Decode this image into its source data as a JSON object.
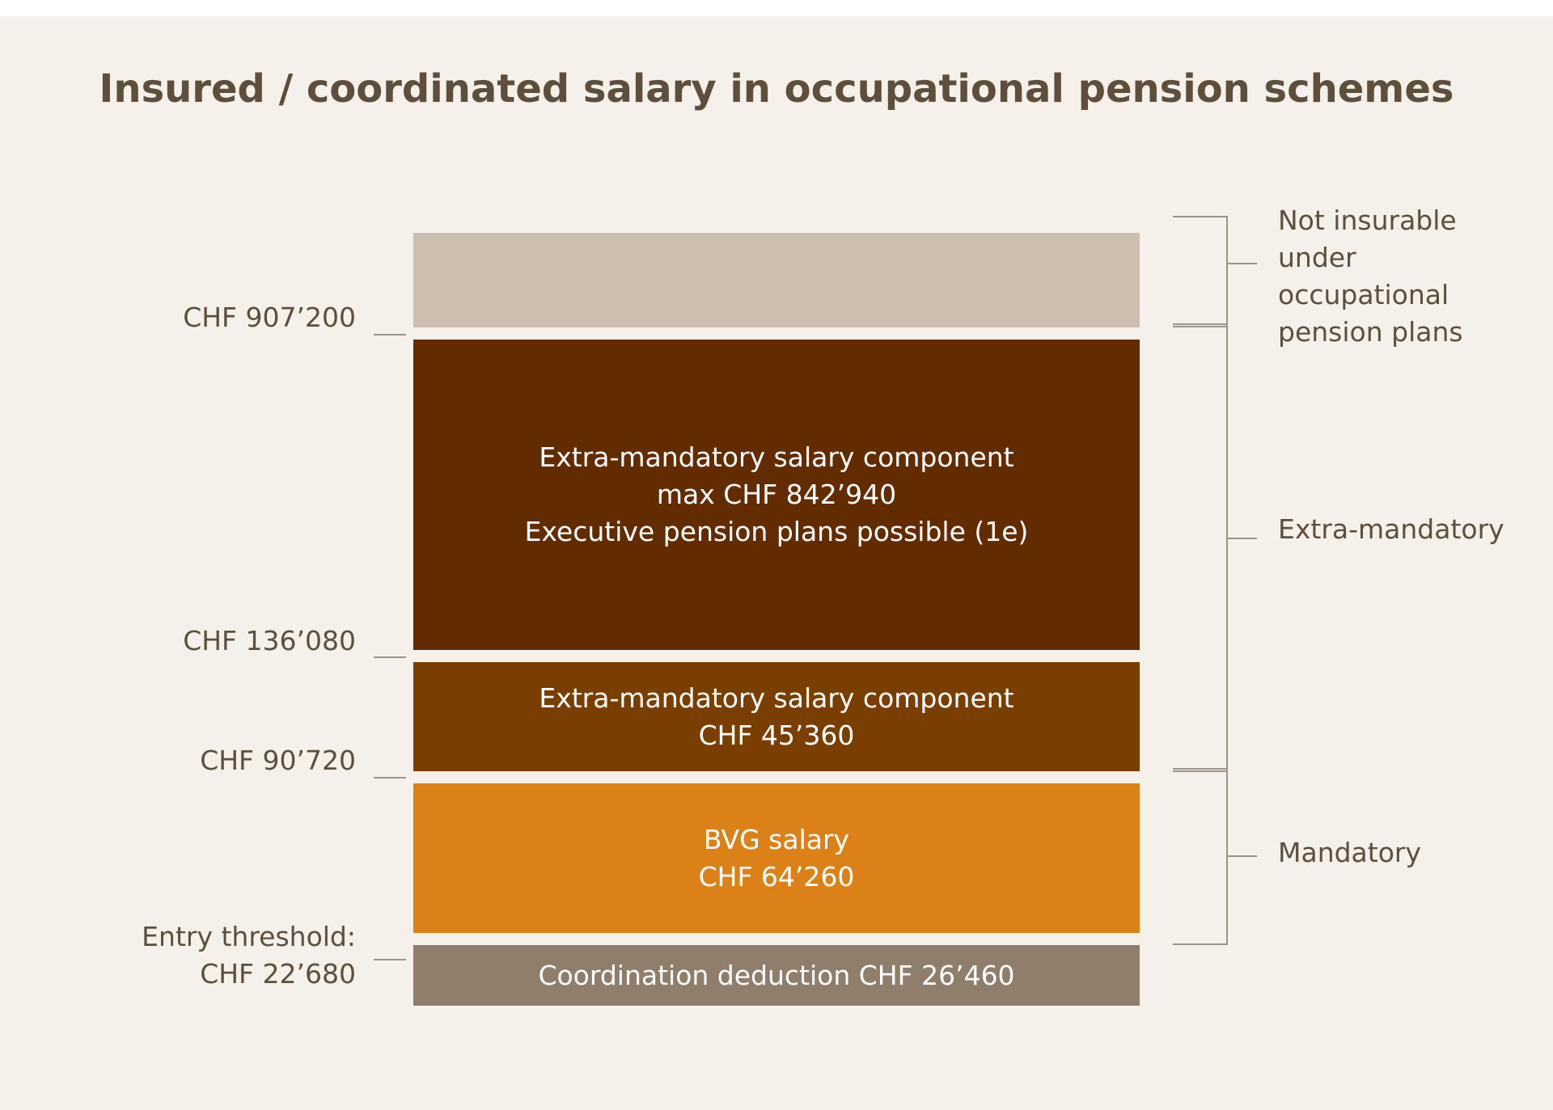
{
  "title": "Insured / coordinated salary in occupational pension schemes",
  "colors": {
    "background": "#f5f0ea",
    "not_insurable": "#ccbfaf",
    "extra_upper": "#622b00",
    "extra_lower": "#7a3f00",
    "bvg": "#dc8118",
    "coordination": "#8f7e6b",
    "text_dark": "#5e4f3d",
    "bracket_line": "#9c9389"
  },
  "blocks": {
    "not_insurable": {
      "lines": []
    },
    "extra_upper": {
      "lines": [
        "Extra-mandatory salary component",
        "max CHF 842’940",
        "Executive pension plans possible (1e)"
      ]
    },
    "extra_lower": {
      "lines": [
        "Extra-mandatory salary component",
        "CHF 45’360"
      ]
    },
    "bvg": {
      "lines": [
        "BVG salary",
        "CHF 64’260"
      ]
    },
    "coordination": {
      "lines": [
        "Coordination deduction CHF 26’460"
      ]
    }
  },
  "levels": {
    "l907": {
      "lines": [
        "CHF 907’200"
      ]
    },
    "l136": {
      "lines": [
        "CHF 136’080"
      ]
    },
    "l90": {
      "lines": [
        "CHF 90’720"
      ]
    },
    "entry": {
      "lines": [
        "Entry threshold:",
        "CHF 22’680"
      ]
    }
  },
  "brackets": {
    "not_insurable": {
      "lines": [
        "Not insurable",
        "under",
        "occupational",
        "pension plans"
      ]
    },
    "extra_mandatory": {
      "lines": [
        "Extra-mandatory"
      ]
    },
    "mandatory": {
      "lines": [
        "Mandatory"
      ]
    }
  }
}
